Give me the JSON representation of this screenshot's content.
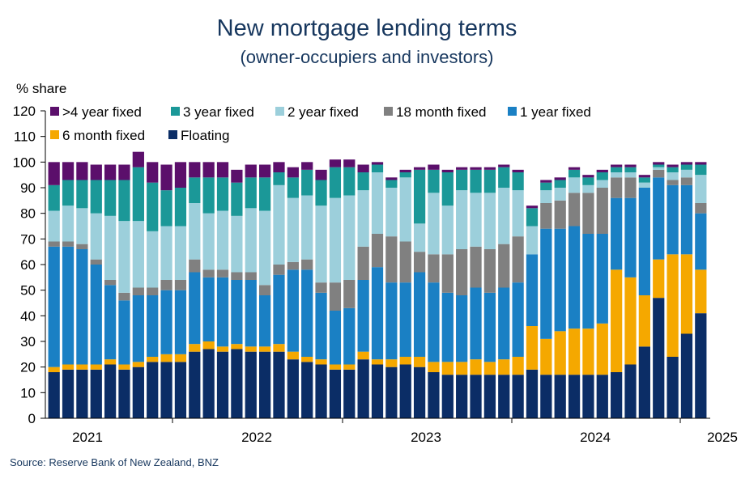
{
  "chart_data": {
    "type": "bar",
    "stacked": true,
    "title": "New mortgage lending terms",
    "subtitle": "(owner-occupiers and investors)",
    "ylabel": "% share",
    "ylim": [
      0,
      120
    ],
    "yticks": [
      0,
      10,
      20,
      30,
      40,
      50,
      60,
      70,
      80,
      90,
      100,
      110,
      120
    ],
    "x_year_labels": [
      "2021",
      "2022",
      "2023",
      "2024",
      "2025"
    ],
    "source": "Source: Reserve Bank of New Zealand, BNZ",
    "legend_position": "top-left",
    "series": [
      {
        "name": "Floating",
        "color": "#0b2d66",
        "values": [
          18,
          19,
          19,
          19,
          21,
          19,
          20,
          22,
          22,
          22,
          26,
          27,
          26,
          27,
          26,
          26,
          26,
          23,
          22,
          21,
          19,
          19,
          23,
          21,
          20,
          21,
          20,
          18,
          17,
          17,
          17,
          17,
          17,
          17,
          19,
          17,
          17,
          17,
          17,
          17,
          18,
          21,
          28,
          47,
          24,
          33,
          41
        ]
      },
      {
        "name": "6 month fixed",
        "color": "#f5a800",
        "values": [
          2,
          2,
          2,
          2,
          2,
          2,
          2,
          2,
          3,
          3,
          3,
          3,
          2,
          2,
          2,
          2,
          3,
          3,
          2,
          2,
          2,
          2,
          3,
          2,
          3,
          3,
          4,
          4,
          5,
          5,
          6,
          5,
          6,
          7,
          17,
          14,
          17,
          18,
          18,
          20,
          40,
          34,
          20,
          15,
          40,
          31,
          17
        ]
      },
      {
        "name": "1 year fixed",
        "color": "#1a80c4",
        "values": [
          47,
          46,
          45,
          39,
          29,
          25,
          26,
          24,
          25,
          25,
          28,
          25,
          27,
          25,
          26,
          20,
          27,
          32,
          34,
          26,
          21,
          22,
          28,
          36,
          30,
          29,
          33,
          31,
          27,
          26,
          28,
          27,
          28,
          29,
          28,
          43,
          40,
          40,
          37,
          35,
          28,
          31,
          42,
          32,
          27,
          27,
          22
        ]
      },
      {
        "name": "18 month fixed",
        "color": "#808080",
        "values": [
          2,
          2,
          2,
          2,
          2,
          3,
          3,
          3,
          4,
          4,
          5,
          3,
          3,
          3,
          3,
          4,
          4,
          3,
          4,
          4,
          11,
          11,
          13,
          13,
          18,
          16,
          8,
          11,
          15,
          18,
          16,
          17,
          17,
          18,
          0,
          10,
          11,
          13,
          16,
          18,
          8,
          8,
          0,
          3,
          2,
          3,
          4
        ]
      },
      {
        "name": "2 year fixed",
        "color": "#9ccfdb",
        "values": [
          12,
          14,
          14,
          18,
          25,
          28,
          26,
          22,
          21,
          21,
          22,
          22,
          23,
          22,
          25,
          29,
          31,
          25,
          25,
          30,
          33,
          33,
          22,
          24,
          19,
          25,
          11,
          24,
          19,
          23,
          21,
          22,
          22,
          18,
          11,
          5,
          5,
          6,
          3,
          3,
          2,
          2,
          2,
          1,
          3,
          3,
          11
        ]
      },
      {
        "name": "3 year fixed",
        "color": "#1b9898",
        "values": [
          10,
          10,
          11,
          13,
          14,
          16,
          21,
          19,
          14,
          15,
          10,
          14,
          13,
          13,
          12,
          13,
          5,
          8,
          10,
          10,
          12,
          11,
          7,
          3,
          3,
          2,
          21,
          9,
          13,
          8,
          9,
          9,
          8,
          7,
          7,
          3,
          3,
          3,
          3,
          3,
          2,
          2,
          2,
          1,
          2,
          2,
          4
        ]
      },
      {
        "name": ">4 year fixed",
        "color": "#5b0f6b",
        "values": [
          9,
          7,
          7,
          6,
          6,
          6,
          6,
          8,
          10,
          10,
          6,
          6,
          6,
          5,
          5,
          5,
          4,
          4,
          3,
          4,
          3,
          3,
          3,
          1,
          1,
          1,
          1,
          2,
          1,
          1,
          1,
          1,
          1,
          1,
          1,
          1,
          1,
          1,
          1,
          1,
          1,
          1,
          1,
          1,
          1,
          1,
          1
        ]
      }
    ]
  },
  "legend_order": [
    ">4 year fixed",
    "3 year fixed",
    "2 year fixed",
    "18 month fixed",
    "1 year fixed",
    "6 month fixed",
    "Floating"
  ]
}
